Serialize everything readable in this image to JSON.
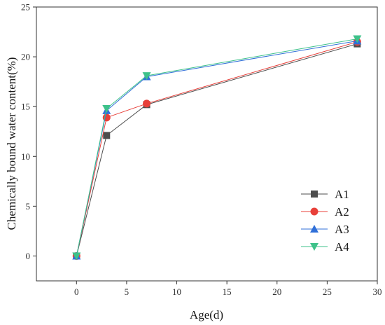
{
  "chart_data": {
    "type": "line",
    "xlabel": "Age(d)",
    "ylabel": "Chemically bound water content(%)",
    "xlim": [
      -4,
      30
    ],
    "ylim": [
      -2.5,
      25
    ],
    "xticks": [
      0,
      5,
      10,
      15,
      20,
      25,
      30
    ],
    "yticks": [
      0,
      5,
      10,
      15,
      20,
      25
    ],
    "grid": false,
    "legend_position": "bottom-right",
    "x": [
      0,
      3,
      7,
      28
    ],
    "series": [
      {
        "name": "A1",
        "values": [
          0,
          12.1,
          15.2,
          21.3
        ],
        "color": "#4d4d4d",
        "marker": "square"
      },
      {
        "name": "A2",
        "values": [
          0,
          13.9,
          15.3,
          21.5
        ],
        "color": "#e8403a",
        "marker": "circle"
      },
      {
        "name": "A3",
        "values": [
          0,
          14.6,
          18.0,
          21.6
        ],
        "color": "#2f6fd8",
        "marker": "triangle-up"
      },
      {
        "name": "A4",
        "values": [
          0,
          14.8,
          18.1,
          21.8
        ],
        "color": "#3ec28a",
        "marker": "triangle-down"
      }
    ]
  }
}
